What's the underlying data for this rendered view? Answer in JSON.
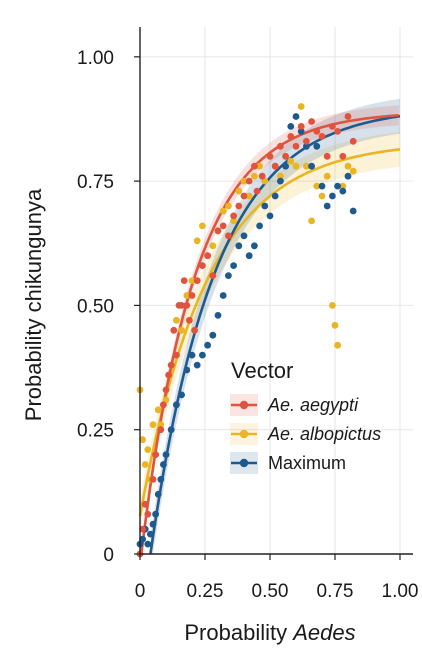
{
  "chart_data": {
    "type": "scatter",
    "xlabel": "Probability",
    "xlabel_italic": "Aedes",
    "ylabel": "Probability chikungunya",
    "xlim": [
      0,
      1.05
    ],
    "ylim": [
      0,
      1.06
    ],
    "x_ticks": [
      0,
      0.25,
      0.5,
      0.75,
      1.0
    ],
    "x_tick_labels": [
      "0",
      "0.25",
      "0.50",
      "0.75",
      "1.00"
    ],
    "y_ticks": [
      0,
      0.25,
      0.5,
      0.75,
      1.0
    ],
    "y_tick_labels": [
      "0",
      "0.25",
      "0.50",
      "0.75",
      "1.00"
    ],
    "grid": true,
    "legend": {
      "title": "Vector",
      "position": "right-middle"
    },
    "series": [
      {
        "name": "Ae. aegypti",
        "italic": true,
        "color": "#e0533e",
        "fit": {
          "a": 0.89,
          "k": 4.8,
          "x0": 0.005
        },
        "band": 0.02,
        "points": [
          [
            0.0,
            0.0
          ],
          [
            0.01,
            0.05
          ],
          [
            0.02,
            0.1
          ],
          [
            0.03,
            0.08
          ],
          [
            0.05,
            0.15
          ],
          [
            0.06,
            0.2
          ],
          [
            0.08,
            0.25
          ],
          [
            0.09,
            0.3
          ],
          [
            0.1,
            0.33
          ],
          [
            0.11,
            0.36
          ],
          [
            0.12,
            0.38
          ],
          [
            0.13,
            0.45
          ],
          [
            0.14,
            0.4
          ],
          [
            0.15,
            0.5
          ],
          [
            0.16,
            0.5
          ],
          [
            0.17,
            0.55
          ],
          [
            0.18,
            0.5
          ],
          [
            0.19,
            0.47
          ],
          [
            0.2,
            0.52
          ],
          [
            0.21,
            0.45
          ],
          [
            0.22,
            0.55
          ],
          [
            0.24,
            0.58
          ],
          [
            0.26,
            0.6
          ],
          [
            0.28,
            0.56
          ],
          [
            0.3,
            0.65
          ],
          [
            0.32,
            0.66
          ],
          [
            0.34,
            0.64
          ],
          [
            0.36,
            0.68
          ],
          [
            0.38,
            0.7
          ],
          [
            0.4,
            0.72
          ],
          [
            0.42,
            0.75
          ],
          [
            0.44,
            0.78
          ],
          [
            0.45,
            0.73
          ],
          [
            0.47,
            0.76
          ],
          [
            0.5,
            0.8
          ],
          [
            0.52,
            0.78
          ],
          [
            0.54,
            0.82
          ],
          [
            0.56,
            0.8
          ],
          [
            0.58,
            0.84
          ],
          [
            0.6,
            0.82
          ],
          [
            0.62,
            0.86
          ],
          [
            0.64,
            0.83
          ],
          [
            0.66,
            0.87
          ],
          [
            0.68,
            0.85
          ],
          [
            0.7,
            0.84
          ],
          [
            0.72,
            0.8
          ],
          [
            0.74,
            0.86
          ],
          [
            0.76,
            0.85
          ],
          [
            0.78,
            0.8
          ],
          [
            0.8,
            0.88
          ],
          [
            0.82,
            0.83
          ]
        ]
      },
      {
        "name": "Ae. albopictus",
        "italic": true,
        "color": "#e9b522",
        "fit": {
          "a": 0.83,
          "k": 3.85,
          "x0": -0.025
        },
        "band": 0.035,
        "points": [
          [
            0.0,
            0.33
          ],
          [
            0.01,
            0.23
          ],
          [
            0.02,
            0.18
          ],
          [
            0.03,
            0.21
          ],
          [
            0.04,
            0.15
          ],
          [
            0.05,
            0.26
          ],
          [
            0.06,
            0.2
          ],
          [
            0.07,
            0.29
          ],
          [
            0.08,
            0.26
          ],
          [
            0.1,
            0.31
          ],
          [
            0.12,
            0.38
          ],
          [
            0.14,
            0.47
          ],
          [
            0.16,
            0.45
          ],
          [
            0.18,
            0.52
          ],
          [
            0.2,
            0.55
          ],
          [
            0.22,
            0.63
          ],
          [
            0.24,
            0.66
          ],
          [
            0.26,
            0.6
          ],
          [
            0.28,
            0.62
          ],
          [
            0.3,
            0.65
          ],
          [
            0.32,
            0.69
          ],
          [
            0.34,
            0.7
          ],
          [
            0.36,
            0.67
          ],
          [
            0.38,
            0.73
          ],
          [
            0.4,
            0.75
          ],
          [
            0.42,
            0.72
          ],
          [
            0.44,
            0.76
          ],
          [
            0.46,
            0.78
          ],
          [
            0.48,
            0.75
          ],
          [
            0.5,
            0.8
          ],
          [
            0.52,
            0.78
          ],
          [
            0.54,
            0.76
          ],
          [
            0.56,
            0.8
          ],
          [
            0.58,
            0.79
          ],
          [
            0.6,
            0.78
          ],
          [
            0.62,
            0.9
          ],
          [
            0.64,
            0.78
          ],
          [
            0.66,
            0.67
          ],
          [
            0.68,
            0.74
          ],
          [
            0.7,
            0.72
          ],
          [
            0.72,
            0.76
          ],
          [
            0.74,
            0.5
          ],
          [
            0.75,
            0.46
          ],
          [
            0.76,
            0.42
          ],
          [
            0.78,
            0.74
          ],
          [
            0.8,
            0.78
          ],
          [
            0.82,
            0.77
          ]
        ]
      },
      {
        "name": "Maximum",
        "italic": false,
        "color": "#1f5a8f",
        "fit": {
          "a": 0.9,
          "k": 4.0,
          "x0": 0.04
        },
        "band": 0.035,
        "points": [
          [
            0.0,
            0.02
          ],
          [
            0.01,
            0.03
          ],
          [
            0.02,
            0.05
          ],
          [
            0.03,
            0.02
          ],
          [
            0.04,
            0.04
          ],
          [
            0.05,
            0.06
          ],
          [
            0.06,
            0.08
          ],
          [
            0.07,
            0.12
          ],
          [
            0.08,
            0.15
          ],
          [
            0.09,
            0.18
          ],
          [
            0.1,
            0.2
          ],
          [
            0.12,
            0.25
          ],
          [
            0.14,
            0.3
          ],
          [
            0.16,
            0.32
          ],
          [
            0.18,
            0.37
          ],
          [
            0.2,
            0.4
          ],
          [
            0.22,
            0.38
          ],
          [
            0.24,
            0.4
          ],
          [
            0.26,
            0.42
          ],
          [
            0.28,
            0.44
          ],
          [
            0.3,
            0.48
          ],
          [
            0.32,
            0.52
          ],
          [
            0.34,
            0.56
          ],
          [
            0.36,
            0.58
          ],
          [
            0.38,
            0.62
          ],
          [
            0.4,
            0.64
          ],
          [
            0.42,
            0.6
          ],
          [
            0.44,
            0.62
          ],
          [
            0.46,
            0.66
          ],
          [
            0.48,
            0.7
          ],
          [
            0.5,
            0.68
          ],
          [
            0.52,
            0.72
          ],
          [
            0.54,
            0.75
          ],
          [
            0.56,
            0.78
          ],
          [
            0.58,
            0.86
          ],
          [
            0.6,
            0.88
          ],
          [
            0.62,
            0.85
          ],
          [
            0.64,
            0.82
          ],
          [
            0.66,
            0.78
          ],
          [
            0.68,
            0.82
          ],
          [
            0.7,
            0.74
          ],
          [
            0.72,
            0.7
          ],
          [
            0.74,
            0.72
          ],
          [
            0.76,
            0.74
          ],
          [
            0.78,
            0.73
          ],
          [
            0.8,
            0.76
          ],
          [
            0.82,
            0.69
          ]
        ]
      }
    ]
  }
}
